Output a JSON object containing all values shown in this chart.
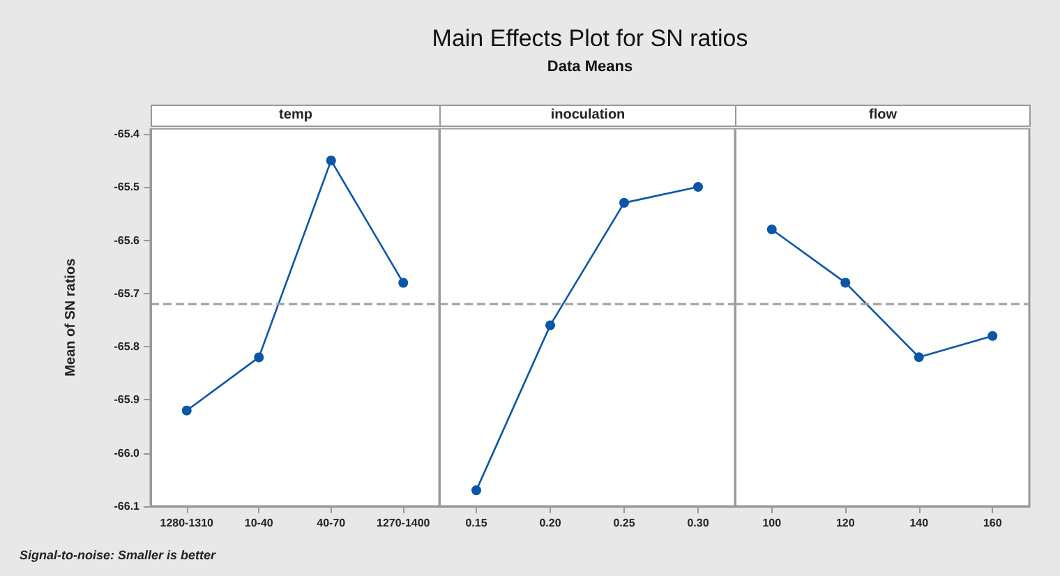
{
  "chart_data": [
    {
      "type": "line",
      "xlabel": "temp",
      "ylabel": "Mean of SN ratios",
      "annotations": [
        "Signal-to-noise: Smaller is better"
      ],
      "categories": [
        "1280-1310",
        "10-40",
        "40-70",
        "1270-1400"
      ],
      "series": [
        {
          "color": "#0a56a8",
          "values": [
            -65.92,
            -65.82,
            -65.45,
            -65.68
          ]
        }
      ],
      "ylim": [
        -66.1,
        -65.39
      ],
      "yticks": [
        -65.4,
        -65.5,
        -65.6,
        -65.7,
        -65.8,
        -65.9,
        {
          "value": -66,
          "label": "-66.0"
        },
        -66.1
      ],
      "ref_lines": [
        {
          "axis": "y",
          "value": -65.72,
          "color": "#a0a0a0",
          "line_style": "dashed"
        }
      ],
      "marker": "circle",
      "line_style": "solid",
      "grid": false
    },
    {
      "type": "line",
      "title": "Main Effects Plot for SN ratios",
      "subtitle": "Data Means",
      "xlabel": "inoculation",
      "categories": [
        "0.15",
        "0.20",
        "0.25",
        "0.30"
      ],
      "series": [
        {
          "color": "#0a56a8",
          "values": [
            -66.07,
            -65.76,
            -65.53,
            -65.5
          ]
        }
      ],
      "ylim": [
        -66.1,
        -65.39
      ],
      "tick_labels": "x",
      "ref_lines": [
        {
          "axis": "y",
          "value": -65.72,
          "color": "#a0a0a0",
          "line_style": "dashed"
        }
      ],
      "marker": "circle",
      "line_style": "solid",
      "grid": false
    },
    {
      "type": "line",
      "xlabel": "flow",
      "categories": [
        "100",
        "120",
        "140",
        "160"
      ],
      "series": [
        {
          "color": "#0a56a8",
          "values": [
            -65.58,
            -65.68,
            -65.82,
            -65.78
          ]
        }
      ],
      "ylim": [
        -66.1,
        -65.39
      ],
      "tick_labels": "x",
      "ref_lines": [
        {
          "axis": "y",
          "value": -65.72,
          "color": "#a0a0a0",
          "line_style": "dashed"
        }
      ],
      "marker": "circle",
      "line_style": "solid",
      "grid": false
    }
  ]
}
